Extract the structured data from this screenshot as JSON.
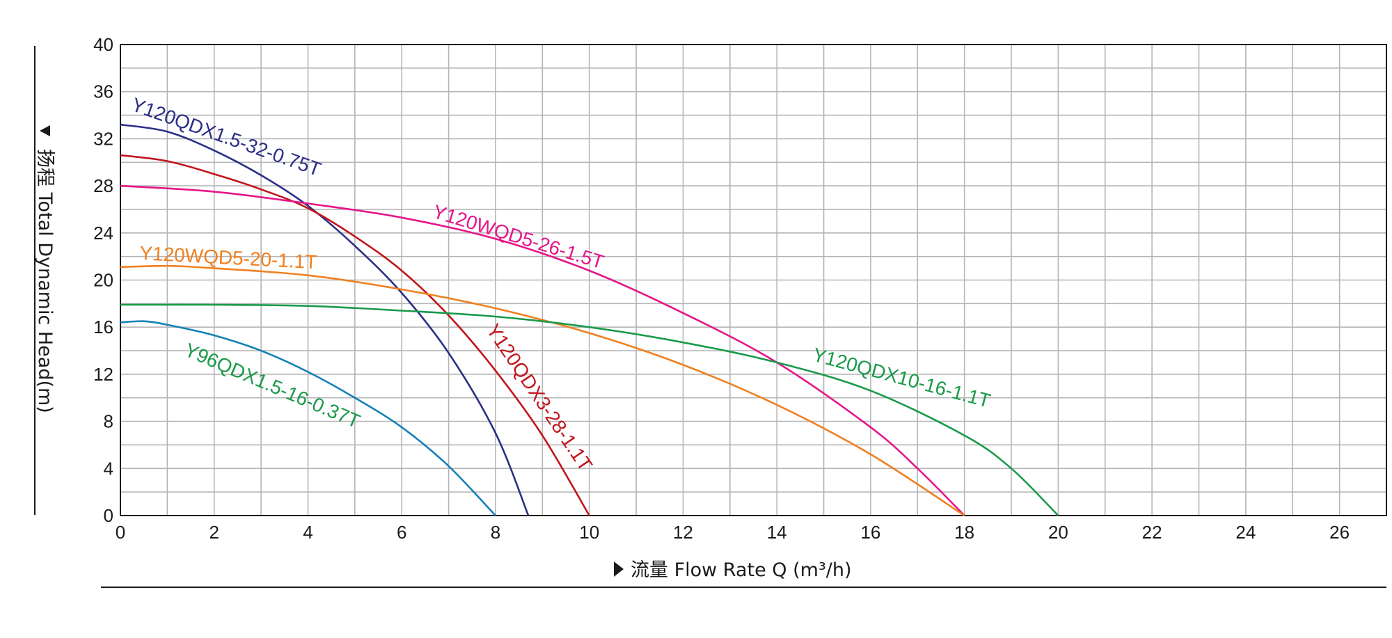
{
  "chart_data": {
    "type": "line",
    "xlabel": "流量 Flow Rate Q (m³/h)",
    "ylabel": "扬程 Total Dynamic Head(m)",
    "xlim": [
      0,
      27
    ],
    "ylim": [
      0,
      40
    ],
    "x_ticks": [
      0,
      2,
      4,
      6,
      8,
      10,
      12,
      14,
      16,
      18,
      20,
      22,
      24,
      26
    ],
    "y_ticks": [
      0,
      4,
      8,
      12,
      16,
      20,
      24,
      28,
      32,
      36,
      40
    ],
    "grid": true,
    "series": [
      {
        "name": "Y120QDX1.5-32-0.75T",
        "color": "#2b2f86",
        "points": [
          [
            0,
            33.2
          ],
          [
            1,
            32.6
          ],
          [
            2,
            31.0
          ],
          [
            3,
            28.9
          ],
          [
            4,
            26.3
          ],
          [
            5,
            22.9
          ],
          [
            6,
            18.9
          ],
          [
            7,
            13.8
          ],
          [
            8,
            7.0
          ],
          [
            8.7,
            0
          ]
        ]
      },
      {
        "name": "Y120QDX3-28-1.1T",
        "color": "#c0161c",
        "points": [
          [
            0,
            30.6
          ],
          [
            1,
            30.1
          ],
          [
            2,
            29.0
          ],
          [
            3,
            27.7
          ],
          [
            4,
            26.1
          ],
          [
            5,
            23.7
          ],
          [
            6,
            20.8
          ],
          [
            7,
            17.0
          ],
          [
            8,
            12.3
          ],
          [
            9,
            6.8
          ],
          [
            10,
            0
          ]
        ]
      },
      {
        "name": "Y120WQD5-26-1.5T",
        "color": "#e5168a",
        "points": [
          [
            0,
            28.0
          ],
          [
            2,
            27.5
          ],
          [
            4,
            26.5
          ],
          [
            6,
            25.3
          ],
          [
            8,
            23.5
          ],
          [
            10,
            20.8
          ],
          [
            12,
            17.2
          ],
          [
            14,
            13.0
          ],
          [
            16,
            7.5
          ],
          [
            17,
            4.0
          ],
          [
            18,
            0
          ]
        ]
      },
      {
        "name": "Y120WQD5-20-1.1T",
        "color": "#f08020",
        "points": [
          [
            0,
            21.1
          ],
          [
            1,
            21.2
          ],
          [
            2,
            21.0
          ],
          [
            4,
            20.4
          ],
          [
            6,
            19.2
          ],
          [
            8,
            17.6
          ],
          [
            10,
            15.5
          ],
          [
            12,
            12.8
          ],
          [
            14,
            9.4
          ],
          [
            16,
            5.2
          ],
          [
            18,
            0
          ]
        ]
      },
      {
        "name": "Y120QDX10-16-1.1T",
        "color": "#1a9a4a",
        "points": [
          [
            0,
            17.9
          ],
          [
            2,
            17.9
          ],
          [
            4,
            17.8
          ],
          [
            6,
            17.4
          ],
          [
            8,
            16.9
          ],
          [
            10,
            16.0
          ],
          [
            12,
            14.7
          ],
          [
            14,
            13.0
          ],
          [
            16,
            10.6
          ],
          [
            18,
            6.8
          ],
          [
            19,
            4.0
          ],
          [
            20,
            0
          ]
        ]
      },
      {
        "name": "Y96QDX1.5-16-0.37T",
        "color": "#1580b8",
        "points": [
          [
            0,
            16.4
          ],
          [
            0.5,
            16.5
          ],
          [
            1,
            16.2
          ],
          [
            2,
            15.3
          ],
          [
            3,
            14.0
          ],
          [
            4,
            12.2
          ],
          [
            5,
            10.0
          ],
          [
            6,
            7.5
          ],
          [
            7,
            4.2
          ],
          [
            8,
            0
          ]
        ]
      }
    ],
    "curve_label_colors": [
      "#2b2f86",
      "#c0161c",
      "#e5168a",
      "#f08020",
      "#1a9a4a",
      "#1a9a4a"
    ]
  }
}
